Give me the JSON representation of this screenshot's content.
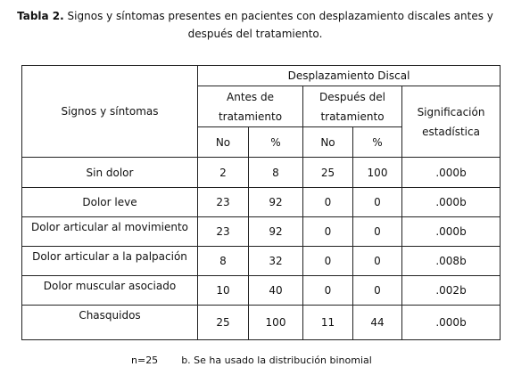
{
  "caption": {
    "label": "Tabla 2.",
    "text": "Signos y síntomas presentes en pacientes con desplazamiento discales antes y después del tratamiento."
  },
  "table": {
    "header": {
      "row_header": "Signos y síntomas",
      "group": "Desplazamiento Discal",
      "before": "Antes de tratamiento",
      "after": "Después del tratamiento",
      "significance": "Significación estadística",
      "no": "No",
      "pct": "%"
    },
    "rows": [
      [
        "Sin dolor",
        "2",
        "8",
        "25",
        "100",
        ".000b"
      ],
      [
        "Dolor leve",
        "23",
        "92",
        "0",
        "0",
        ".000b"
      ],
      [
        "Dolor articular al movimiento",
        "23",
        "92",
        "0",
        "0",
        ".000b"
      ],
      [
        "Dolor articular a la palpación",
        "8",
        "32",
        "0",
        "0",
        ".008b"
      ],
      [
        "Dolor muscular asociado",
        "10",
        "40",
        "0",
        "0",
        ".002b"
      ],
      [
        "Chasquidos",
        "25",
        "100",
        "11",
        "44",
        ".000b"
      ]
    ]
  },
  "footnote": {
    "n": "n=25",
    "note": "b. Se ha usado la distribución binomial"
  }
}
